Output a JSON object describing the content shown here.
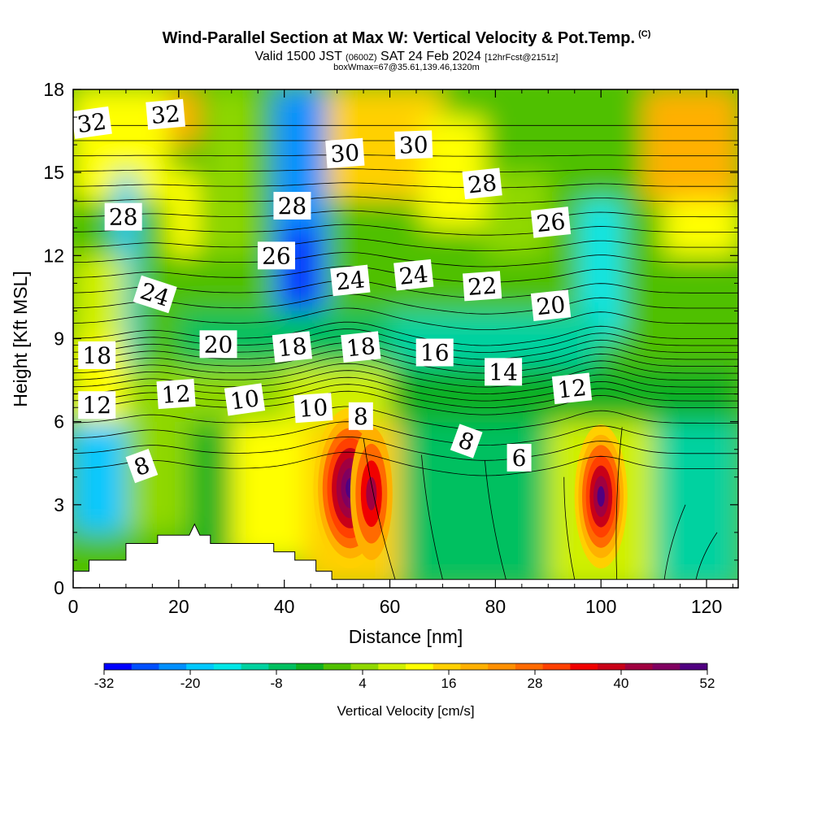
{
  "header": {
    "title": "Wind-Parallel Section at Max W: Vertical Velocity & Pot.Temp.",
    "title_tag": "(C)",
    "valid_prefix": "Valid 1500 JST",
    "valid_utc": "(0600Z)",
    "valid_date": "SAT 24 Feb 2024",
    "forecast": "[12hrFcst@2151z]",
    "box_info": "boxWmax=67@35.61,139.46,1320m"
  },
  "chart_data": {
    "type": "heatmap",
    "xlabel": "Distance [nm]",
    "ylabel": "Height [Kft MSL]",
    "xlim": [
      0,
      126
    ],
    "ylim": [
      0,
      18
    ],
    "x_ticks": [
      0,
      20,
      40,
      60,
      80,
      100,
      120
    ],
    "y_ticks": [
      0,
      3,
      6,
      9,
      12,
      15,
      18
    ],
    "grid": false,
    "colorbar": {
      "label": "Vertical Velocity [cm/s]",
      "placement": "bottom",
      "min": -32,
      "max": 52,
      "step": 4,
      "tick_values": [
        -32,
        -20,
        -8,
        4,
        16,
        28,
        40,
        52
      ],
      "colors": [
        "#0000ff",
        "#0050ff",
        "#0090ff",
        "#00c8ff",
        "#00e6e6",
        "#00d2a0",
        "#00c060",
        "#10b020",
        "#50c000",
        "#90d800",
        "#d0f000",
        "#ffff00",
        "#ffd000",
        "#ffb000",
        "#ff9000",
        "#ff6a00",
        "#ff4000",
        "#f00000",
        "#c80018",
        "#a00040",
        "#800060",
        "#500080"
      ]
    },
    "theta_labels": [
      {
        "text": "32",
        "x": 3.5,
        "y": 16.8,
        "rot": -8
      },
      {
        "text": "32",
        "x": 17.5,
        "y": 17.1,
        "rot": -5
      },
      {
        "text": "30",
        "x": 51.5,
        "y": 15.7,
        "rot": -4
      },
      {
        "text": "30",
        "x": 64.5,
        "y": 16.0,
        "rot": -2
      },
      {
        "text": "28",
        "x": 9.5,
        "y": 13.4,
        "rot": 0
      },
      {
        "text": "28",
        "x": 41.5,
        "y": 13.8,
        "rot": 0
      },
      {
        "text": "28",
        "x": 77.5,
        "y": 14.6,
        "rot": -6
      },
      {
        "text": "26",
        "x": 38.5,
        "y": 12.0,
        "rot": 0
      },
      {
        "text": "26",
        "x": 90.5,
        "y": 13.2,
        "rot": -6
      },
      {
        "text": "24",
        "x": 15.5,
        "y": 10.6,
        "rot": 18
      },
      {
        "text": "24",
        "x": 52.5,
        "y": 11.1,
        "rot": -6
      },
      {
        "text": "24",
        "x": 64.5,
        "y": 11.3,
        "rot": -6
      },
      {
        "text": "22",
        "x": 77.5,
        "y": 10.9,
        "rot": -4
      },
      {
        "text": "20",
        "x": 27.5,
        "y": 8.8,
        "rot": 0
      },
      {
        "text": "20",
        "x": 90.5,
        "y": 10.2,
        "rot": -6
      },
      {
        "text": "18",
        "x": 4.5,
        "y": 8.4,
        "rot": 0
      },
      {
        "text": "18",
        "x": 41.5,
        "y": 8.7,
        "rot": -6
      },
      {
        "text": "18",
        "x": 54.5,
        "y": 8.7,
        "rot": -6
      },
      {
        "text": "16",
        "x": 68.5,
        "y": 8.5,
        "rot": 0
      },
      {
        "text": "14",
        "x": 81.5,
        "y": 7.8,
        "rot": 0
      },
      {
        "text": "12",
        "x": 4.5,
        "y": 6.6,
        "rot": 0
      },
      {
        "text": "12",
        "x": 19.5,
        "y": 7.0,
        "rot": -4
      },
      {
        "text": "12",
        "x": 94.5,
        "y": 7.2,
        "rot": -6
      },
      {
        "text": "10",
        "x": 32.5,
        "y": 6.8,
        "rot": -8
      },
      {
        "text": "10",
        "x": 45.5,
        "y": 6.5,
        "rot": -4
      },
      {
        "text": "8",
        "x": 54.5,
        "y": 6.2,
        "rot": 0
      },
      {
        "text": "8",
        "x": 74.5,
        "y": 5.3,
        "rot": 20
      },
      {
        "text": "8",
        "x": 13.0,
        "y": 4.4,
        "rot": -20
      },
      {
        "text": "6",
        "x": 84.5,
        "y": 4.7,
        "rot": 0
      }
    ]
  }
}
